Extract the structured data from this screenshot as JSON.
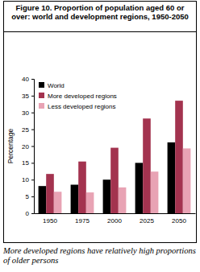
{
  "chart_data": {
    "type": "bar",
    "title": "Figure 10.  Proportion of population aged 60 or over: world and development regions, 1950-2050",
    "caption": "More developed regions have relatively high proportions of older persons",
    "y_label": "Percentage",
    "categories": [
      "1950",
      "1975",
      "2000",
      "2025",
      "2050"
    ],
    "series": [
      {
        "name": "World",
        "color": "#000000",
        "values": [
          8.1,
          8.5,
          10.0,
          15.0,
          21.1
        ]
      },
      {
        "name": "More developed regions",
        "color": "#a3334f",
        "values": [
          11.7,
          15.4,
          19.5,
          28.2,
          33.5
        ]
      },
      {
        "name": "Less developed regions",
        "color": "#e8a3b4",
        "values": [
          6.4,
          6.2,
          7.7,
          12.4,
          19.3
        ]
      }
    ],
    "ylim": [
      0,
      40
    ],
    "yticks": [
      0,
      5,
      10,
      15,
      20,
      25,
      30,
      35,
      40
    ],
    "grid": false,
    "legend": "upper left"
  }
}
